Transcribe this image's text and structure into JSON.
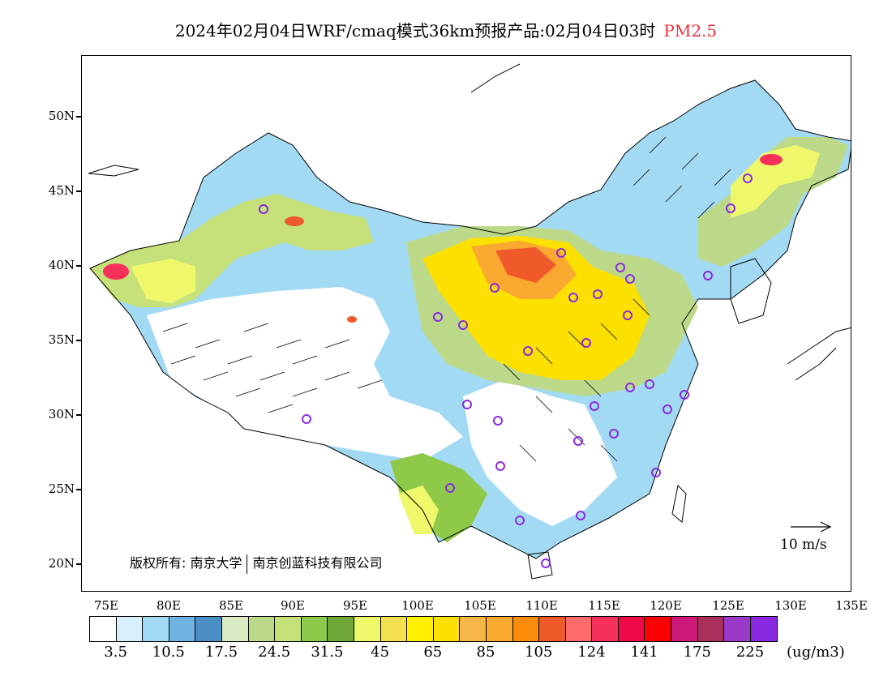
{
  "title": {
    "main": "2024年02月04日WRF/cmaq模式36km预报产品:02月04日03时",
    "pollutant": "PM2.5"
  },
  "axes": {
    "y_ticks": [
      "50N",
      "45N",
      "40N",
      "35N",
      "30N",
      "25N",
      "20N"
    ],
    "x_ticks": [
      "75E",
      "80E",
      "85E",
      "90E",
      "95E",
      "100E",
      "105E",
      "110E",
      "115E",
      "120E",
      "125E",
      "130E",
      "135E"
    ]
  },
  "copyright": {
    "left": "版权所有: 南京大学",
    "right": "南京创蓝科技有限公司"
  },
  "reference_vector": {
    "label": "10 m/s"
  },
  "colorbar": {
    "colors": [
      "#ffffff",
      "#d7f0fb",
      "#a3daf3",
      "#6fb3e0",
      "#4a8ec4",
      "#dcebc4",
      "#bcd98a",
      "#c6e07a",
      "#8fc94a",
      "#6fa838",
      "#eef86a",
      "#f2e050",
      "#fff000",
      "#fbe000",
      "#f7b748",
      "#f9a830",
      "#fb8c0a",
      "#f05a2a",
      "#ff6a6a",
      "#f5305a",
      "#ee0a46",
      "#ff0000",
      "#cc1a7a",
      "#a8305a",
      "#9a3ac8",
      "#8a2ae0"
    ],
    "labels": [
      "3.5",
      "10.5",
      "17.5",
      "24.5",
      "31.5",
      "45",
      "65",
      "85",
      "105",
      "124",
      "141",
      "175",
      "225"
    ],
    "unit": "(ug/m3)"
  }
}
